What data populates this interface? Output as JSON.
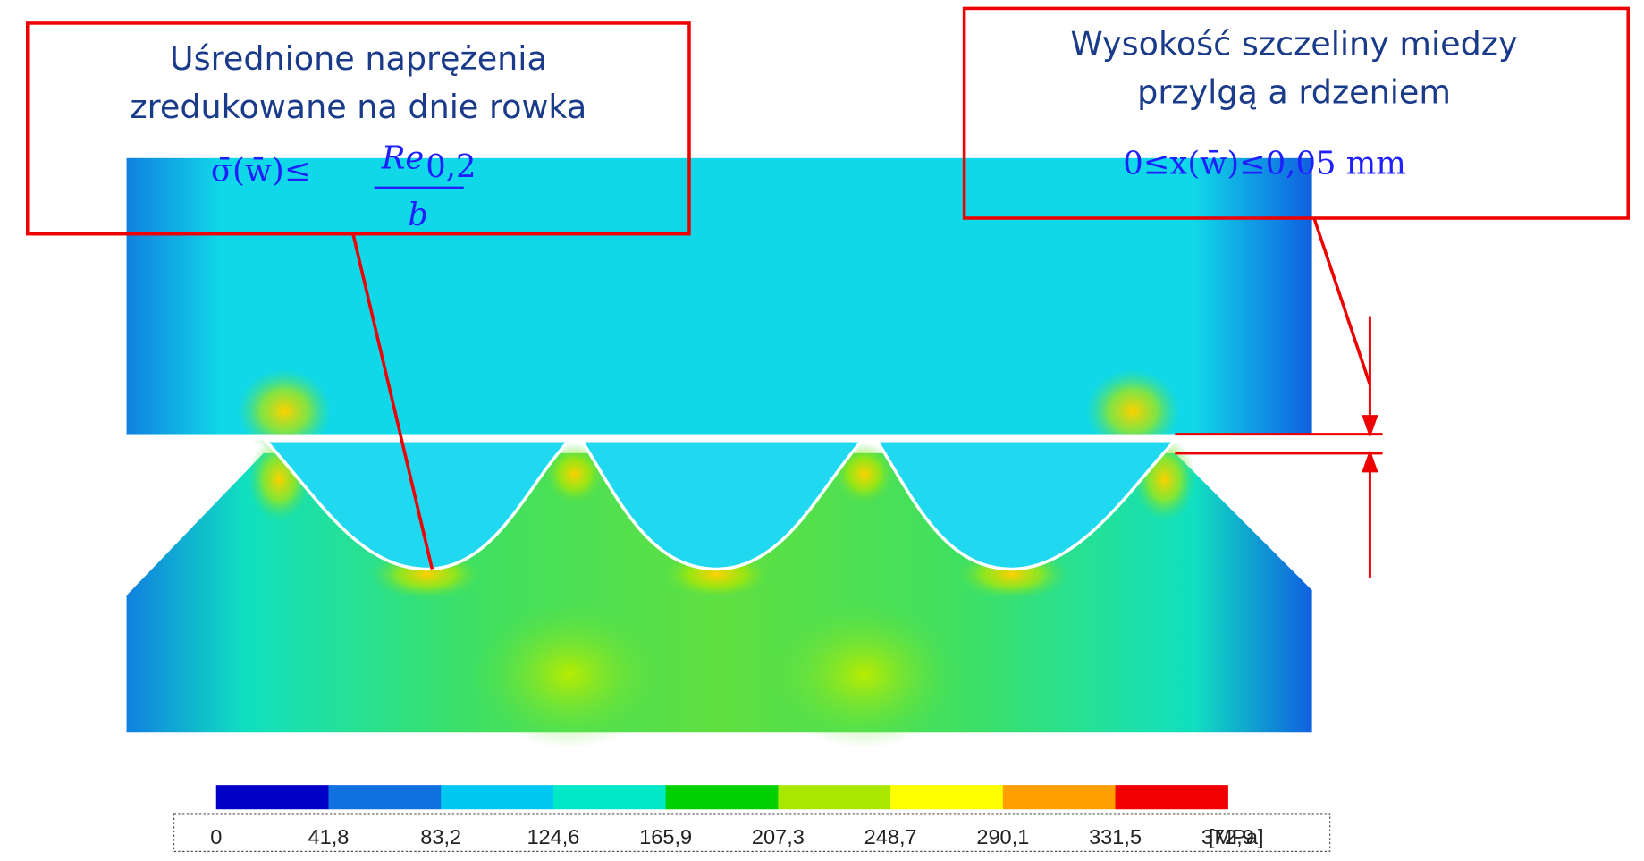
{
  "callouts": [
    {
      "lines": [
        "Uśrednione naprężenia",
        "zredukowane na dnie rowka"
      ],
      "formula": {
        "lhs": "σ̄(w̄)≤",
        "numerator": "Re",
        "subscript": "0,2",
        "denominator": "b"
      }
    },
    {
      "lines": [
        "Wysokość szczeliny miedzy",
        "przylgą a rdzeniem"
      ],
      "formula": {
        "text": "0≤x(w̄)≤0,05 mm"
      }
    }
  ],
  "colorbar": {
    "colors": [
      "#0000c8",
      "#1070e0",
      "#00c8f0",
      "#00e8c8",
      "#00d000",
      "#a8e800",
      "#ffff00",
      "#ffa000",
      "#f00000"
    ],
    "labels": [
      "0",
      "41,8",
      "83,2",
      "124,6",
      "165,9",
      "207,3",
      "248,7",
      "290,1",
      "331,5",
      "372,9"
    ],
    "unit": "[MPa]"
  }
}
